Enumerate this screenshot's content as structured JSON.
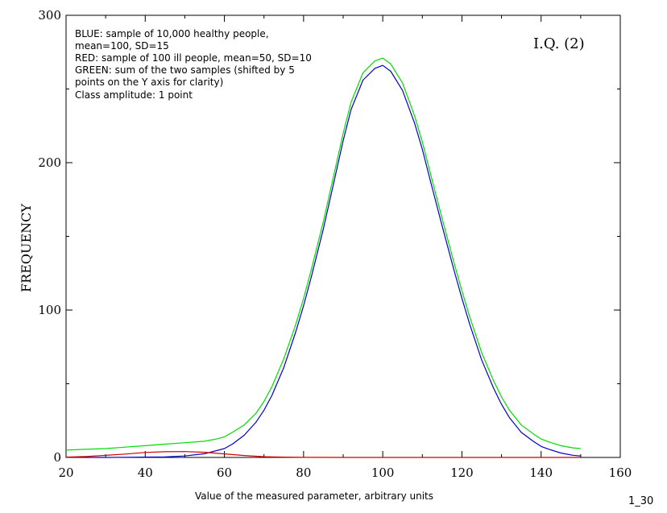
{
  "chart_data": {
    "type": "line",
    "xlabel": "Value of the measured parameter, arbitrary units",
    "ylabel": "FREQUENCY",
    "xlim": [
      20,
      160
    ],
    "ylim": [
      0,
      300
    ],
    "xticks": [
      20,
      40,
      60,
      80,
      100,
      120,
      140,
      160
    ],
    "yticks": [
      0,
      100,
      200,
      300
    ],
    "grid": false,
    "annotation_tag": "I.Q. (2)",
    "figure_id": "1_30",
    "legend_lines": [
      "BLUE: sample of 10,000 healthy people,",
      "mean=100, SD=15",
      "RED: sample of 100 ill people, mean=50, SD=10",
      "GREEN: sum of the two samples (shifted by 5",
      "points on the Y axis for clarity)",
      "Class amplitude: 1 point"
    ],
    "colors": {
      "blue": "#0000cc",
      "red": "#cc0000",
      "green": "#00dd00"
    },
    "series": [
      {
        "color": "blue",
        "x": [
          25,
          30,
          35,
          40,
          45,
          50,
          55,
          60,
          62,
          65,
          68,
          70,
          72,
          75,
          78,
          80,
          82,
          85,
          88,
          90,
          92,
          95,
          98,
          100,
          102,
          105,
          108,
          110,
          112,
          115,
          118,
          120,
          122,
          125,
          128,
          130,
          132,
          135,
          138,
          140,
          142,
          145,
          148,
          150
        ],
        "y": [
          0,
          0,
          0.1,
          0.2,
          0.4,
          1,
          2.5,
          6,
          9,
          15,
          24,
          32,
          42,
          61,
          85,
          103,
          123,
          155,
          191,
          215,
          236,
          256,
          264,
          266,
          262,
          249,
          227,
          209,
          188,
          157,
          127,
          108,
          90,
          66,
          47,
          36,
          27,
          17,
          11,
          7.5,
          5.5,
          3,
          1.5,
          1
        ]
      },
      {
        "color": "red",
        "x": [
          20,
          25,
          30,
          35,
          40,
          45,
          50,
          55,
          60,
          65,
          70,
          75,
          80,
          90,
          100,
          110,
          120,
          130,
          140,
          150
        ],
        "y": [
          0.2,
          0.6,
          1.4,
          2.3,
          3.4,
          3.9,
          4.0,
          3.5,
          2.4,
          1.3,
          0.5,
          0.2,
          0.05,
          0,
          0,
          0,
          0,
          0,
          0,
          0
        ]
      },
      {
        "color": "green",
        "x": [
          20,
          25,
          30,
          35,
          40,
          45,
          50,
          55,
          58,
          60,
          62,
          65,
          68,
          70,
          72,
          75,
          78,
          80,
          82,
          85,
          88,
          90,
          92,
          95,
          98,
          100,
          102,
          105,
          108,
          110,
          112,
          115,
          118,
          120,
          122,
          125,
          128,
          130,
          132,
          135,
          138,
          140,
          142,
          145,
          148,
          150
        ],
        "y": [
          5,
          5.5,
          6,
          7,
          8,
          9,
          10,
          11,
          12.5,
          14,
          17,
          22,
          30,
          38,
          48,
          67,
          90,
          108,
          128,
          160,
          196,
          220,
          241,
          261,
          269,
          271,
          267,
          254,
          232,
          214,
          193,
          162,
          132,
          113,
          95,
          71,
          52,
          41,
          32,
          22,
          16,
          12.5,
          10.5,
          8,
          6.5,
          6
        ]
      }
    ]
  }
}
